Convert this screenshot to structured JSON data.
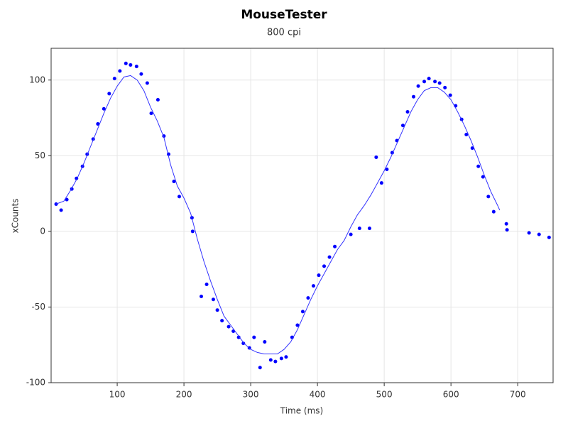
{
  "chart_data": {
    "type": "scatter",
    "title": "MouseTester",
    "subtitle": "800 cpi",
    "x_label": "Time (ms)",
    "y_label": "xCounts",
    "xlim": [
      1,
      753
    ],
    "ylim": [
      -100,
      121
    ],
    "xticks": [
      100,
      200,
      300,
      400,
      500,
      600,
      700
    ],
    "yticks": [
      -100,
      -50,
      0,
      50,
      100
    ],
    "grid": true,
    "series": [
      {
        "type": "scatter",
        "color": "#0000ff",
        "x": [
          8.5,
          16,
          24.5,
          32,
          39,
          48,
          55,
          64,
          71,
          80,
          88,
          96,
          104,
          113,
          120,
          129,
          136,
          145,
          151,
          161,
          170,
          177,
          185,
          193,
          212,
          213,
          226,
          234,
          244,
          250,
          257,
          267,
          274,
          282,
          289,
          298,
          305,
          314,
          321,
          330,
          337,
          346,
          353,
          362,
          370,
          378,
          386,
          394,
          402,
          410,
          418,
          426,
          450,
          463,
          478,
          488,
          496,
          504,
          512,
          519,
          528,
          535,
          544,
          551,
          560,
          567,
          576,
          583,
          591,
          599,
          607,
          616,
          623,
          632,
          641,
          648,
          656,
          664,
          683,
          684,
          717,
          732,
          747
        ],
        "values": [
          18,
          14,
          21,
          28,
          35,
          43,
          51,
          61,
          71,
          81,
          91,
          101,
          106,
          111,
          110,
          109,
          104,
          98,
          78,
          87,
          63,
          51,
          33,
          23,
          9,
          0,
          -43,
          -35,
          -45,
          -52,
          -59,
          -63,
          -66,
          -70,
          -74,
          -77,
          -70,
          -90,
          -73,
          -85,
          -86,
          -84,
          -83,
          -70,
          -62,
          -53,
          -44,
          -36,
          -29,
          -23,
          -17,
          -10,
          -2,
          2,
          2,
          49,
          32,
          41,
          52,
          60,
          70,
          79,
          89,
          96,
          99,
          101,
          99,
          98,
          95,
          90,
          83,
          74,
          64,
          55,
          43,
          36,
          23,
          13,
          5,
          1,
          -1,
          -2,
          -4
        ]
      },
      {
        "type": "line",
        "color": "#3333ff",
        "x": [
          8,
          20,
          30,
          40,
          50,
          60,
          70,
          80,
          90,
          100,
          110,
          120,
          130,
          140,
          150,
          160,
          170,
          180,
          190,
          200,
          210,
          220,
          230,
          240,
          250,
          260,
          270,
          280,
          290,
          300,
          310,
          320,
          330,
          340,
          350,
          360,
          370,
          380,
          390,
          400,
          410,
          420,
          430,
          440,
          450,
          460,
          470,
          480,
          490,
          500,
          510,
          520,
          530,
          540,
          550,
          560,
          570,
          580,
          590,
          600,
          610,
          620,
          630,
          640,
          650,
          660,
          670,
          673
        ],
        "values": [
          18,
          20,
          27,
          35,
          45,
          56,
          67,
          78,
          88,
          96,
          102,
          103,
          100,
          93,
          82,
          73,
          62,
          44,
          30,
          22,
          12,
          -5,
          -20,
          -33,
          -45,
          -56,
          -62,
          -68,
          -74,
          -78,
          -80,
          -81,
          -81,
          -81,
          -78,
          -73,
          -65,
          -55,
          -45,
          -36,
          -28,
          -20,
          -12,
          -6,
          3,
          11,
          17,
          24,
          32,
          40,
          49,
          59,
          69,
          79,
          87,
          93,
          95,
          95,
          92,
          87,
          79,
          70,
          60,
          49,
          37,
          26,
          17,
          14
        ]
      }
    ]
  }
}
